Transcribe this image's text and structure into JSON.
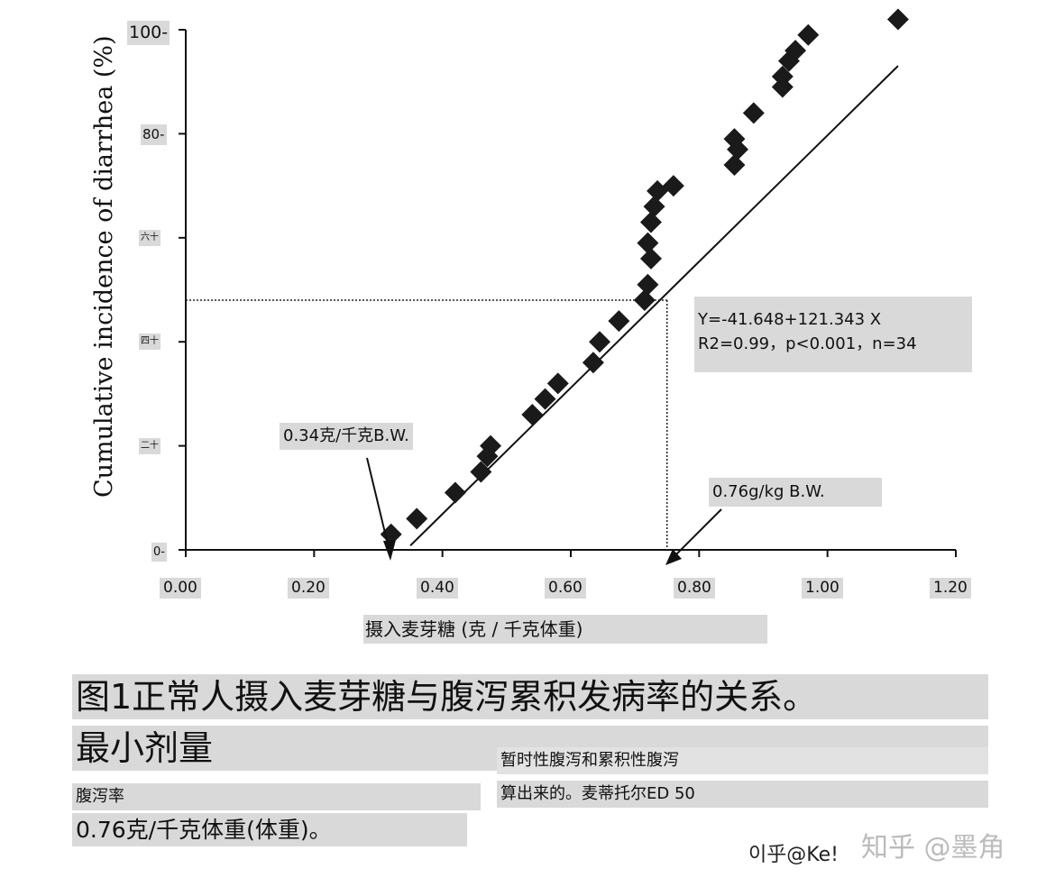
{
  "chart_data": {
    "type": "scatter",
    "ylabel": "Cumulative incidence of diarrhea (%)",
    "xlabel": "摄入麦芽糖 (克 / 千克体重)",
    "xlim": [
      0,
      1.2
    ],
    "ylim": [
      0,
      100
    ],
    "x_tick_labels": [
      "0.00",
      "0.20",
      "0.40",
      "0.60",
      "0.80",
      "1.00",
      "1.20"
    ],
    "y_tick_labels": [
      "0-",
      "二十",
      "四十",
      "六十",
      "80-",
      "100-"
    ],
    "points": [
      {
        "x": 0.32,
        "y": 3
      },
      {
        "x": 0.36,
        "y": 6
      },
      {
        "x": 0.42,
        "y": 11
      },
      {
        "x": 0.46,
        "y": 15
      },
      {
        "x": 0.47,
        "y": 18
      },
      {
        "x": 0.475,
        "y": 20
      },
      {
        "x": 0.54,
        "y": 26
      },
      {
        "x": 0.56,
        "y": 29
      },
      {
        "x": 0.58,
        "y": 32
      },
      {
        "x": 0.635,
        "y": 36
      },
      {
        "x": 0.645,
        "y": 40
      },
      {
        "x": 0.675,
        "y": 44
      },
      {
        "x": 0.715,
        "y": 48
      },
      {
        "x": 0.72,
        "y": 51
      },
      {
        "x": 0.725,
        "y": 56
      },
      {
        "x": 0.72,
        "y": 59
      },
      {
        "x": 0.725,
        "y": 63
      },
      {
        "x": 0.73,
        "y": 66
      },
      {
        "x": 0.735,
        "y": 69
      },
      {
        "x": 0.76,
        "y": 70
      },
      {
        "x": 0.855,
        "y": 74
      },
      {
        "x": 0.86,
        "y": 77
      },
      {
        "x": 0.855,
        "y": 79
      },
      {
        "x": 0.885,
        "y": 84
      },
      {
        "x": 0.93,
        "y": 89
      },
      {
        "x": 0.93,
        "y": 91
      },
      {
        "x": 0.94,
        "y": 94
      },
      {
        "x": 0.95,
        "y": 96
      },
      {
        "x": 0.97,
        "y": 99
      },
      {
        "x": 1.11,
        "y": 102
      }
    ],
    "regression": {
      "x_start": 0.35,
      "x_end": 1.11
    },
    "reference": {
      "x": 0.75,
      "y": 48
    },
    "equation_lines": [
      "Y=-41.648+121.343 X",
      "R2=0.99，p<0.001，n=34"
    ],
    "annotations": [
      "0.34克/千克B.W.",
      "0.76g/kg B.W."
    ]
  },
  "caption": {
    "line1": "图1正常人摄入麦芽糖与腹泻累积发病率的关系。",
    "line2": "最小剂量",
    "snippet1": "暂时性腹泻和累积性腹泻",
    "snippet2": "腹泻率",
    "snippet3": "算出来的。麦蒂托尔ED 50",
    "line3": "0.76克/千克体重(体重)。"
  },
  "watermark": {
    "text1": "이乎@Ke!",
    "text2": "知乎 @墨角"
  }
}
